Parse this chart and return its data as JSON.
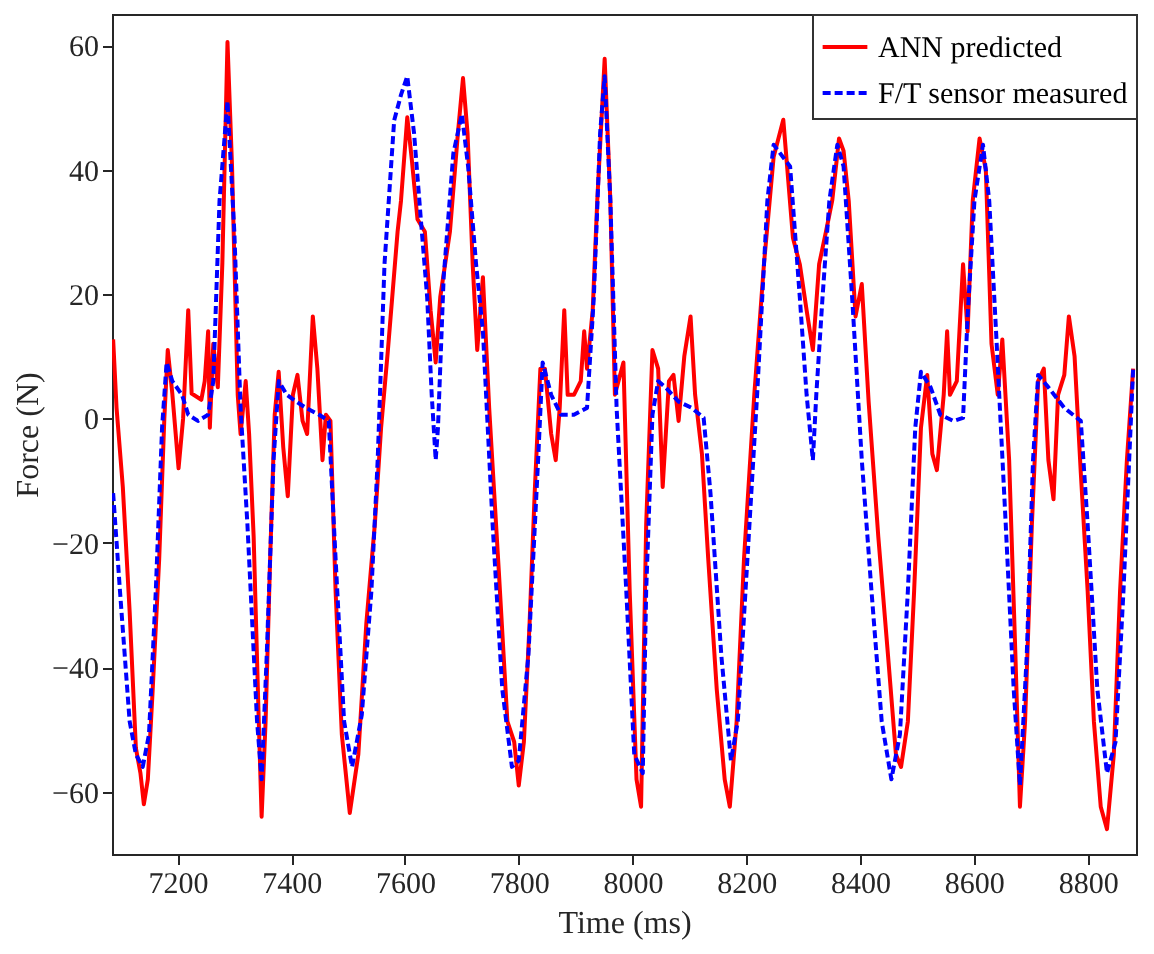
{
  "chart_data": {
    "type": "line",
    "xlabel": "Time (ms)",
    "ylabel": "Force (N)",
    "xlim": [
      7085,
      8885
    ],
    "xticks": [
      7200,
      7400,
      7600,
      7800,
      8000,
      8200,
      8400,
      8600,
      8800
    ],
    "ylim": [
      -70,
      65
    ],
    "yticks": [
      -60,
      -40,
      -20,
      0,
      20,
      40,
      60
    ],
    "grid": false,
    "legend": "top right",
    "marker": "none",
    "series": [
      {
        "name": "ANN predicted",
        "color": "#ff0000",
        "line_style": "solid",
        "x": [
          7087,
          7093,
          7104,
          7116,
          7127,
          7135,
          7141,
          7148,
          7156,
          7168,
          7177,
          7183,
          7191,
          7202,
          7210,
          7219,
          7225,
          7242,
          7248,
          7254,
          7257,
          7263,
          7271,
          7279,
          7288,
          7296,
          7306,
          7311,
          7320,
          7326,
          7334,
          7343,
          7348,
          7355,
          7363,
          7371,
          7378,
          7386,
          7394,
          7403,
          7411,
          7420,
          7428,
          7438,
          7446,
          7455,
          7461,
          7469,
          7478,
          7489,
          7503,
          7518,
          7532,
          7547,
          7558,
          7570,
          7587,
          7593,
          7604,
          7612,
          7622,
          7635,
          7645,
          7654,
          7662,
          7679,
          7693,
          7702,
          7710,
          7719,
          7727,
          7737,
          7748,
          7765,
          7780,
          7792,
          7800,
          7809,
          7819,
          7828,
          7838,
          7846,
          7857,
          7865,
          7872,
          7880,
          7886,
          7897,
          7909,
          7915,
          7920,
          7930,
          7938,
          7951,
          7961,
          7969,
          7984,
          7995,
          8007,
          8015,
          8024,
          8035,
          8045,
          8053,
          8064,
          8072,
          8081,
          8091,
          8102,
          8110,
          8122,
          8133,
          8148,
          8162,
          8171,
          8183,
          8196,
          8214,
          8231,
          8248,
          8265,
          8282,
          8294,
          8306,
          8317,
          8328,
          8340,
          8351,
          8363,
          8371,
          8380,
          8392,
          8403,
          8415,
          8432,
          8449,
          8463,
          8472,
          8484,
          8495,
          8507,
          8518,
          8527,
          8535,
          8547,
          8553,
          8558,
          8570,
          8581,
          8589,
          8598,
          8610,
          8621,
          8631,
          8642,
          8650,
          8662,
          8673,
          8681,
          8690,
          8702,
          8713,
          8723,
          8731,
          8740,
          8748,
          8759,
          8767,
          8777,
          8788,
          8800,
          8811,
          8823,
          8834,
          8846,
          8857,
          8869,
          8880
        ],
        "values": [
          12.7,
          1.7,
          -11,
          -31,
          -53,
          -57,
          -62,
          -58,
          -44.5,
          -22.5,
          0,
          11,
          4,
          -8,
          0,
          17.4,
          4,
          3,
          6,
          14,
          -1.5,
          12,
          5,
          25,
          60.5,
          40.5,
          3.8,
          -2.5,
          6,
          -2.5,
          -19,
          -48.7,
          -64,
          -48.7,
          -22.5,
          0.6,
          7.5,
          -4.6,
          -12.5,
          3.8,
          7,
          -0.4,
          -2.5,
          16.4,
          8,
          -6.7,
          0.6,
          -0.4,
          -27.7,
          -50.8,
          -63.4,
          -54,
          -33,
          -17,
          -1.5,
          11,
          30,
          35,
          48.4,
          41.6,
          32,
          30,
          17.4,
          9,
          19.5,
          30,
          45.8,
          54.7,
          45.8,
          24.8,
          11,
          22.7,
          1.7,
          -24.6,
          -48.7,
          -52,
          -59,
          -52,
          -33,
          -12,
          8,
          8,
          -2.5,
          -6.7,
          1.7,
          17.4,
          3.8,
          3.8,
          6,
          14,
          8,
          17.4,
          35,
          57.8,
          35,
          3.8,
          9,
          -27.7,
          -58,
          -62.4,
          -17,
          11,
          8,
          -11,
          6,
          7,
          -0.4,
          10,
          16.4,
          3.8,
          -5.7,
          -22.5,
          -43.5,
          -58,
          -62.4,
          -48.7,
          -22.5,
          3.8,
          24.8,
          42,
          48,
          29,
          24.8,
          17.4,
          11,
          24.8,
          30,
          35,
          45,
          43,
          35,
          16.4,
          21.6,
          2.7,
          -19,
          -38,
          -54,
          -56,
          -48.7,
          -27.7,
          -1.5,
          7,
          -5.7,
          -8.3,
          3.8,
          14,
          3.8,
          6,
          24.8,
          14,
          35,
          45,
          40,
          12,
          3.8,
          12.7,
          -6.7,
          -38,
          -62.4,
          -48.7,
          -17,
          6,
          8,
          -6.7,
          -13,
          3.8,
          7,
          16.4,
          10,
          -8.8,
          -27.7,
          -48.7,
          -62.4,
          -66,
          -54,
          -27.7,
          -6.7,
          8
        ]
      },
      {
        "name": "F/T sensor measured",
        "color": "#0000ff",
        "line_style": "dashed",
        "x": [
          7087,
          7099,
          7116,
          7127,
          7139,
          7150,
          7162,
          7173,
          7181,
          7191,
          7208,
          7219,
          7236,
          7254,
          7263,
          7274,
          7288,
          7300,
          7311,
          7323,
          7340,
          7348,
          7357,
          7369,
          7378,
          7392,
          7409,
          7426,
          7449,
          7466,
          7478,
          7493,
          7507,
          7524,
          7541,
          7552,
          7564,
          7581,
          7593,
          7604,
          7616,
          7627,
          7639,
          7647,
          7654,
          7658,
          7668,
          7685,
          7700,
          7711,
          7725,
          7737,
          7754,
          7771,
          7788,
          7800,
          7817,
          7834,
          7842,
          7857,
          7874,
          7897,
          7920,
          7932,
          7943,
          7951,
          7961,
          7972,
          7989,
          8003,
          8018,
          8024,
          8035,
          8045,
          8058,
          8081,
          8104,
          8125,
          8137,
          8156,
          8173,
          8185,
          8202,
          8219,
          8237,
          8248,
          8277,
          8294,
          8306,
          8317,
          8323,
          8334,
          8346,
          8360,
          8371,
          8386,
          8403,
          8420,
          8438,
          8455,
          8470,
          8484,
          8497,
          8507,
          8524,
          8541,
          8564,
          8581,
          8589,
          8601,
          8616,
          8627,
          8639,
          8656,
          8670,
          8681,
          8693,
          8704,
          8713,
          8731,
          8759,
          8788,
          8800,
          8817,
          8834,
          8849,
          8863,
          8880
        ],
        "values": [
          -12,
          -27.7,
          -48.7,
          -54,
          -56,
          -50.8,
          -27.7,
          -1.5,
          9,
          6,
          3.8,
          0.6,
          -0.4,
          0.6,
          6,
          35,
          51,
          30,
          1.7,
          -17,
          -48.7,
          -58,
          -38,
          -6.7,
          6,
          3.8,
          2.7,
          1.7,
          0.6,
          -0.4,
          -22.5,
          -48.7,
          -56,
          -47.7,
          -27.7,
          -6.7,
          24.8,
          47.9,
          52,
          55,
          45.8,
          33,
          19.5,
          3.8,
          -6.7,
          -1.5,
          22.7,
          42.6,
          48.9,
          40.5,
          24.8,
          14,
          -17,
          -43.5,
          -56,
          -55,
          -38,
          -6.7,
          9,
          3.8,
          0.6,
          0.6,
          1.7,
          19.5,
          45.8,
          55,
          35,
          1.7,
          -27.7,
          -54,
          -57,
          -27.7,
          0.6,
          6,
          5,
          2.7,
          1.7,
          0.1,
          -12,
          -38,
          -55,
          -48.7,
          -22.5,
          3.8,
          35,
          44,
          40.5,
          19.5,
          3.8,
          -6.7,
          3.8,
          19.5,
          35,
          44,
          40.5,
          19.5,
          -6.7,
          -27.7,
          -48.7,
          -58,
          -50.8,
          -27.7,
          -1.5,
          7.5,
          5,
          0.6,
          -0.4,
          0.1,
          16.4,
          35,
          44,
          35,
          14,
          -17,
          -43.5,
          -59,
          -38,
          -6.7,
          7,
          5,
          1.7,
          -0.4,
          -17,
          -43.5,
          -57,
          -52,
          -27.7,
          8
        ]
      }
    ]
  }
}
